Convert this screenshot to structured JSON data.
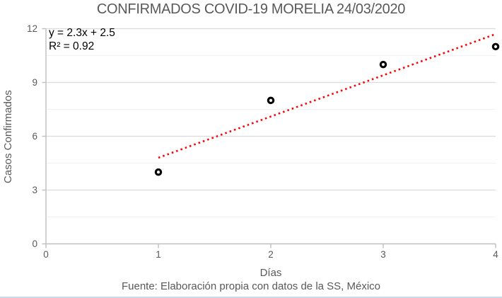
{
  "chart_data": {
    "type": "scatter",
    "title": "CONFIRMADOS COVID-19 MORELIA 24/03/2020",
    "xlabel": "Días",
    "ylabel": "Casos Confirmados",
    "caption": "Fuente: Elaboración propia con datos de la SS, México",
    "x": [
      1,
      2,
      3,
      4
    ],
    "y": [
      4,
      8,
      10,
      11
    ],
    "trendline": {
      "equation_label": "y = 2.3x + 2.5",
      "r2_label": "R² = 0.92",
      "slope": 2.3,
      "intercept": 2.5,
      "x_start": 1,
      "x_end": 4,
      "style": "dotted",
      "color": "#ff0000"
    },
    "xlim": [
      0,
      4
    ],
    "ylim": [
      0,
      12
    ],
    "x_tick_values": [
      0,
      1,
      2,
      3,
      4
    ],
    "x_tick_labels": [
      "0",
      "1",
      "2",
      "3",
      "4"
    ],
    "y_tick_values": [
      0,
      3,
      6,
      9,
      12
    ],
    "y_tick_labels": [
      "0",
      "3",
      "6",
      "9",
      "12"
    ],
    "y_minor_tick_values": [
      1.5,
      4.5,
      7.5,
      10.5
    ],
    "grid": "horizontal only, major and minor",
    "legend": "none",
    "marker": {
      "shape": "open-circle-ring",
      "stroke": "#000000",
      "fill": "#ffffff"
    },
    "colors": {
      "text_muted": "#595959",
      "axis_line": "#bfbfbf",
      "gridline_major": "#dcdcdc",
      "gridline_minor": "#f2f2f2",
      "equation_text": "#000000",
      "trendline": "#ff0000",
      "bottom_rule": "#ccd9ea"
    }
  }
}
